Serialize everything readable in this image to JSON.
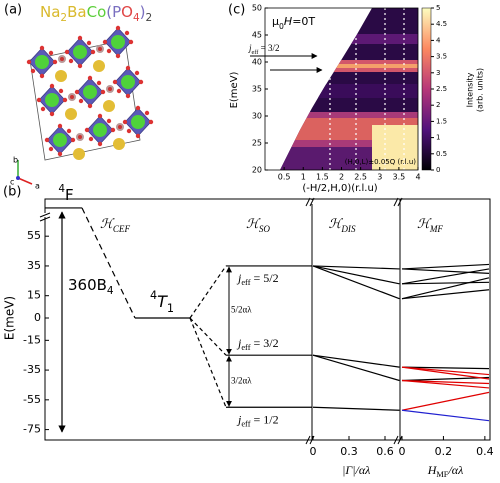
{
  "panel_a": {
    "label": "(a)",
    "formula": [
      {
        "text": "Na",
        "color": "#d9b92c"
      },
      {
        "text": "2",
        "sub": true,
        "color": "#d9b92c"
      },
      {
        "text": "Ba",
        "color": "#d9b92c"
      },
      {
        "text": "Co",
        "color": "#5ccf3a"
      },
      {
        "text": "(",
        "color": "#7a6fc0"
      },
      {
        "text": "P",
        "color": "#7a6fc0"
      },
      {
        "text": "O",
        "color": "#e04545"
      },
      {
        "text": "4",
        "sub": true,
        "color": "#e04545"
      },
      {
        "text": ")",
        "color": "#7a6fc0"
      },
      {
        "text": "2",
        "sub": true,
        "color": "#444444"
      }
    ],
    "axis_labels": [
      "b",
      "c",
      "a"
    ]
  },
  "panel_c": {
    "type": "heatmap",
    "label": "(c)",
    "field": [
      {
        "text": "μ"
      },
      {
        "text": "0",
        "sub": true
      },
      {
        "text": "H",
        "italic": true
      },
      {
        "text": "=0T"
      }
    ],
    "annotation": [
      {
        "text": "j",
        "italic": true
      },
      {
        "text": "eff",
        "sub": true
      },
      {
        "text": " = 3/2"
      }
    ],
    "note": "(H,0,L)±0.05Q (r.l.u)",
    "xlabel": "(-H/2,H,0)(r.l.u)",
    "ylabel": "E(meV)",
    "xlim": [
      0,
      4
    ],
    "xticks": [
      0.5,
      1,
      1.5,
      2,
      2.5,
      3,
      3.5,
      4
    ],
    "ylim": [
      20,
      50
    ],
    "yticks": [
      20,
      25,
      30,
      35,
      40,
      45,
      50
    ],
    "colorbar": {
      "label": [
        "Intensity",
        "(arb. units)"
      ],
      "lim": [
        0,
        5
      ],
      "ticks": [
        0,
        0.5,
        1,
        1.5,
        2,
        2.5,
        3,
        3.5,
        4,
        4.5,
        5
      ]
    }
  },
  "panel_b": {
    "label": "(b)",
    "ylabel": "E(meV)",
    "ylim": [
      -82,
      80
    ],
    "yticks": [
      -75,
      -55,
      -35,
      -15,
      0,
      15,
      35,
      55
    ],
    "hamiltonians": [
      [
        {
          "text": "ℋ"
        },
        {
          "text": "CEF",
          "sub": true
        }
      ],
      [
        {
          "text": "ℋ"
        },
        {
          "text": "SO",
          "sub": true
        }
      ],
      [
        {
          "text": "ℋ"
        },
        {
          "text": "DIS",
          "sub": true
        }
      ],
      [
        {
          "text": "ℋ"
        },
        {
          "text": "MF",
          "sub": true
        }
      ]
    ],
    "levels": [
      {
        "label": [
          {
            "text": "4",
            "sup": true
          },
          {
            "text": "F"
          }
        ],
        "energy": 74
      },
      {
        "label": [
          {
            "text": "4",
            "sup": true
          },
          {
            "text": "T",
            "italic": true
          },
          {
            "text": "1",
            "sub": true
          }
        ],
        "energy": 0
      },
      {
        "label": [
          {
            "text": "j",
            "italic": true
          },
          {
            "text": "eff",
            "sub": true
          },
          {
            "text": " = 5/2"
          }
        ],
        "energy": 35
      },
      {
        "label": [
          {
            "text": "j",
            "italic": true
          },
          {
            "text": "eff",
            "sub": true
          },
          {
            "text": " = 3/2"
          }
        ],
        "energy": -25
      },
      {
        "label": [
          {
            "text": "j",
            "italic": true
          },
          {
            "text": "eff",
            "sub": true
          },
          {
            "text": " = 1/2"
          }
        ],
        "energy": -60
      }
    ],
    "crystal_field": [
      {
        "text": "360B"
      },
      {
        "text": "4",
        "sub": true
      }
    ],
    "gaps": [
      "5/2αλ",
      "3/2αλ"
    ],
    "dis": {
      "xlabel": "|Γ|/αλ",
      "xlim": [
        0,
        0.72
      ],
      "xticks": [
        0,
        0.3,
        0.6
      ],
      "lines": [
        {
          "from": 35,
          "to": 33
        },
        {
          "from": 35,
          "to": 23
        },
        {
          "from": 35,
          "to": 13
        },
        {
          "from": -25,
          "to": -33
        },
        {
          "from": -25,
          "to": -42
        },
        {
          "from": -60,
          "to": -62
        }
      ]
    },
    "mf": {
      "xlabel": [
        {
          "text": "H",
          "italic": true
        },
        {
          "text": "MF",
          "sub": true
        },
        {
          "text": "/αλ",
          "italic": true
        }
      ],
      "xlim": [
        0,
        0.42
      ],
      "xticks": [
        0,
        0.2,
        0.4
      ],
      "lines": [
        {
          "from": 33,
          "to": 36,
          "color": "#000000"
        },
        {
          "from": 33,
          "to": 30,
          "color": "#000000"
        },
        {
          "from": 23,
          "to": 33,
          "color": "#000000"
        },
        {
          "from": 23,
          "to": 24,
          "color": "#000000"
        },
        {
          "from": 13,
          "to": 27,
          "color": "#000000"
        },
        {
          "from": 13,
          "to": 19,
          "color": "#000000"
        },
        {
          "from": -33,
          "to": -34,
          "color": "#000000"
        },
        {
          "from": -42,
          "to": -40,
          "color": "#000000"
        },
        {
          "from": -33,
          "to": -38,
          "color": "#e00000"
        },
        {
          "from": -33,
          "to": -41,
          "color": "#e00000"
        },
        {
          "from": -42,
          "to": -44,
          "color": "#e00000"
        },
        {
          "from": -42,
          "to": -47,
          "color": "#e00000"
        },
        {
          "from": -62,
          "to": -50,
          "color": "#e00000"
        },
        {
          "from": -62,
          "to": -69,
          "color": "#2020d0"
        }
      ]
    }
  }
}
